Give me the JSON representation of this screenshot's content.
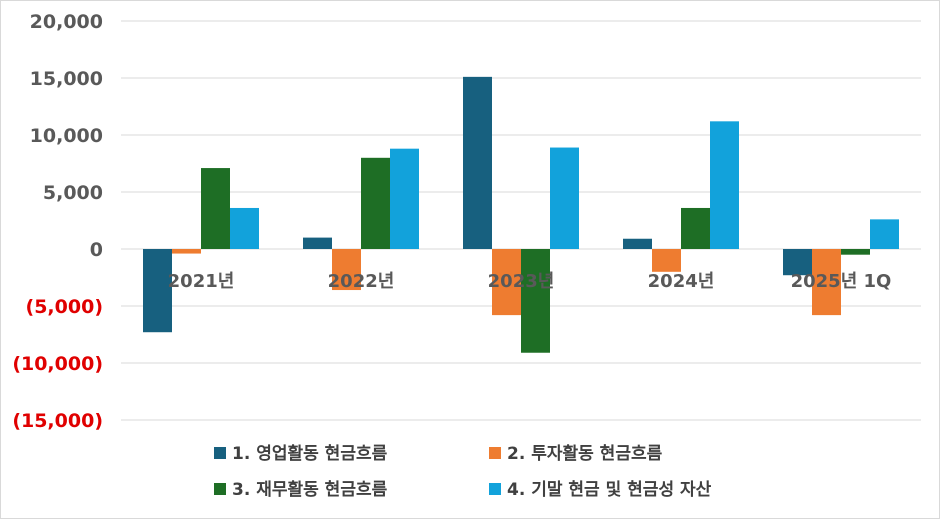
{
  "chart_data": {
    "type": "bar",
    "categories": [
      "2021년",
      "2022년",
      "2023년",
      "2024년",
      "2025년 1Q"
    ],
    "series": [
      {
        "name": "1. 영업활동 현금흐름",
        "color": "#17607f",
        "values": [
          -7300,
          1000,
          15100,
          900,
          -2300
        ]
      },
      {
        "name": "2. 투자활동 현금흐름",
        "color": "#ee7c30",
        "values": [
          -400,
          -3600,
          -5800,
          -2000,
          -5800
        ]
      },
      {
        "name": "3. 재무활동 현금흐름",
        "color": "#1e6e25",
        "values": [
          7100,
          8000,
          -9100,
          3600,
          -500
        ]
      },
      {
        "name": "4. 기말 현금 및 현금성 자산",
        "color": "#12a2db",
        "values": [
          3600,
          8800,
          8900,
          11200,
          2600
        ]
      }
    ],
    "y_ticks": [
      {
        "label": "20,000",
        "value": 20000
      },
      {
        "label": "15,000",
        "value": 15000
      },
      {
        "label": "10,000",
        "value": 10000
      },
      {
        "label": "5,000",
        "value": 5000
      },
      {
        "label": "0",
        "value": 0
      },
      {
        "label": "(5,000)",
        "value": -5000
      },
      {
        "label": "(10,000)",
        "value": -10000
      },
      {
        "label": "(15,000)",
        "value": -15000
      }
    ],
    "ylim": [
      -15000,
      20000
    ],
    "grid": true,
    "legend_position": "bottom",
    "positive_tick_color": "#595959",
    "negative_tick_color": "#e00000",
    "title": "",
    "xlabel": "",
    "ylabel": ""
  }
}
